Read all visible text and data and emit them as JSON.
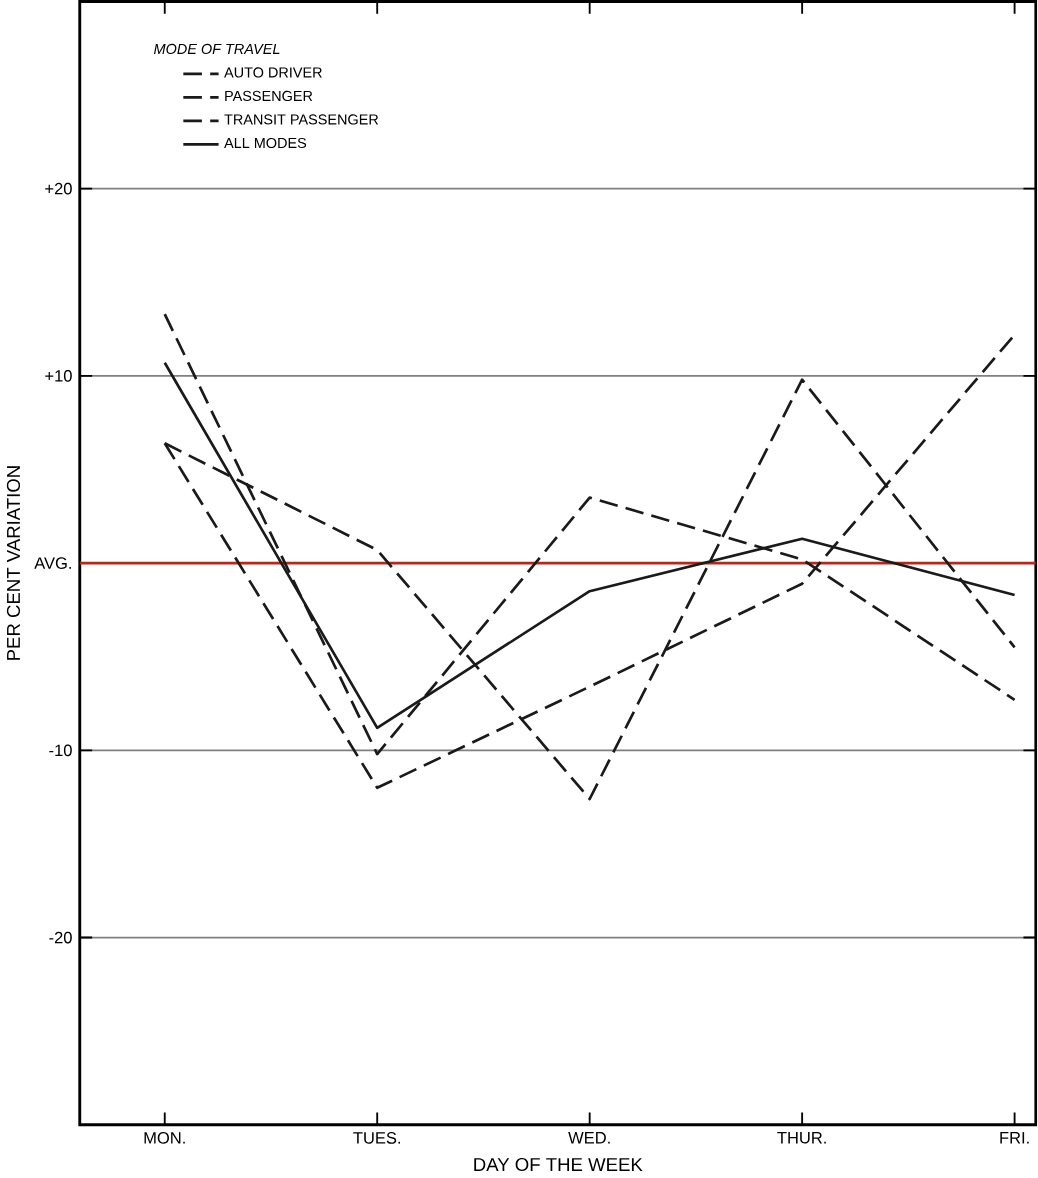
{
  "chart_data": {
    "type": "line",
    "xlabel": "DAY OF THE WEEK",
    "ylabel": "PER CENT VARIATION",
    "legend_title": "*MODE OF TRAVEL*",
    "categories": [
      "MON.",
      "TUES.",
      "WED.",
      "THUR.",
      "FRI."
    ],
    "series": [
      {
        "name": "AUTO DRIVER",
        "color": "#1a1a1a",
        "line_style": "dashed",
        "values": [
          13.3,
          -10.2,
          3.5,
          0.2,
          -7.3
        ]
      },
      {
        "name": "PASSENGER",
        "color": "#1a1a1a",
        "line_style": "dashed",
        "values": [
          6.4,
          0.7,
          -12.6,
          9.8,
          -4.5
        ]
      },
      {
        "name": "TRANSIT PASSENGER",
        "color": "#1a1a1a",
        "line_style": "dashed",
        "values": [
          6.4,
          -12.0,
          -6.6,
          -1.1,
          12.2
        ]
      },
      {
        "name": "ALL MODES",
        "color": "#1a1a1a",
        "line_style": "solid",
        "values": [
          10.7,
          -8.8,
          -1.5,
          1.3,
          -1.7
        ]
      }
    ],
    "ylim": [
      -30,
      30
    ],
    "yticks": [
      {
        "value": -20,
        "label": "-20"
      },
      {
        "value": -10,
        "label": "-10"
      },
      {
        "value": 0,
        "label": "AVG."
      },
      {
        "value": 10,
        "label": "+10"
      },
      {
        "value": 20,
        "label": "+20"
      }
    ],
    "ref_lines": [
      {
        "axis": "y",
        "value": 0,
        "color": "#b02a1e"
      }
    ],
    "grid": "y",
    "legend": "top left"
  }
}
